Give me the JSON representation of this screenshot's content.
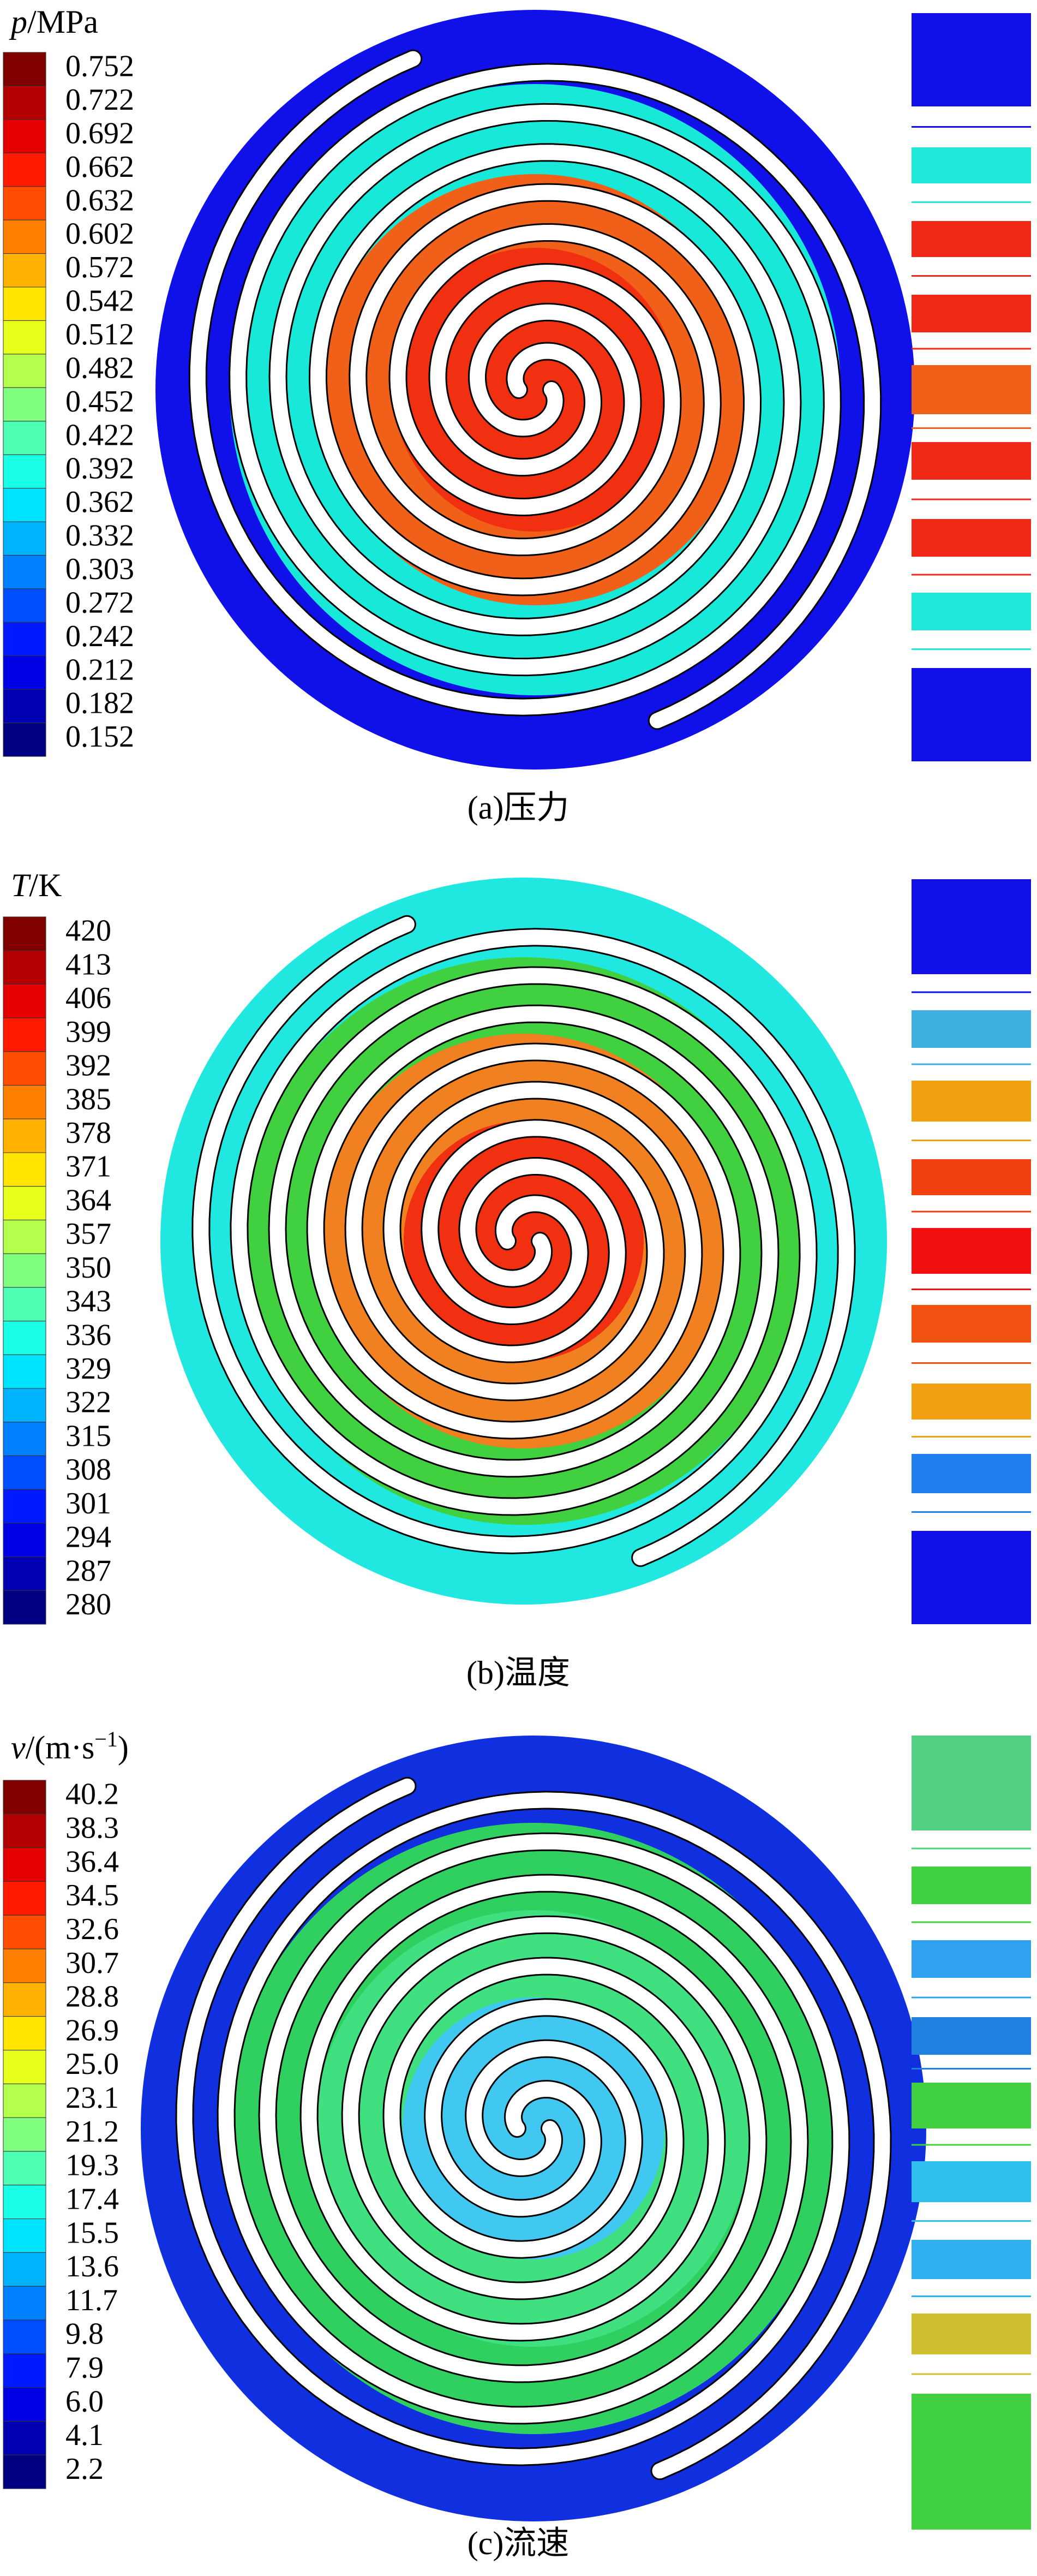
{
  "panels": [
    {
      "legend_title": [
        "p",
        "/MPa"
      ],
      "legend_labels": [
        "0.752",
        "0.722",
        "0.692",
        "0.662",
        "0.632",
        "0.602",
        "0.572",
        "0.542",
        "0.512",
        "0.482",
        "0.452",
        "0.422",
        "0.392",
        "0.362",
        "0.332",
        "0.303",
        "0.272",
        "0.242",
        "0.212",
        "0.182",
        "0.152"
      ],
      "caption": "(a)压力"
    },
    {
      "legend_title": [
        "T",
        "/K"
      ],
      "legend_labels": [
        "420",
        "413",
        "406",
        "399",
        "392",
        "385",
        "378",
        "371",
        "364",
        "357",
        "350",
        "343",
        "336",
        "329",
        "322",
        "315",
        "308",
        "301",
        "294",
        "287",
        "280"
      ],
      "caption": "(b)温度"
    },
    {
      "legend_title": [
        "v",
        "/(m·s",
        "−1",
        ")"
      ],
      "legend_labels": [
        "40.2",
        "38.3",
        "36.4",
        "34.5",
        "32.6",
        "30.7",
        "28.8",
        "26.9",
        "25.0",
        "23.1",
        "21.2",
        "19.3",
        "17.4",
        "15.5",
        "13.6",
        "11.7",
        "9.8",
        "7.9",
        "6.0",
        "4.1",
        "2.2"
      ],
      "caption": "(c)流速"
    }
  ]
}
